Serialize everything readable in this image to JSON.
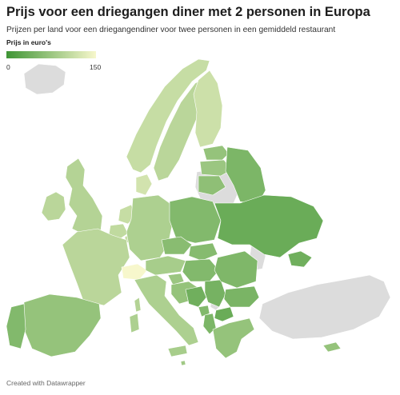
{
  "title": "Prijs voor een driegangen diner met 2 personen in Europa",
  "subtitle": "Prijzen per land voor een driegangendiner voor twee personen in een gemiddeld restaurant",
  "legend": {
    "title": "Prijs in euro's",
    "min_label": "0",
    "max_label": "150",
    "scale_min": 0,
    "scale_max": 150,
    "color_low": "#3f9535",
    "color_high": "#f7f7cc"
  },
  "no_data_color": "#dcdcdc",
  "credit": "Created with Datawrapper"
}
